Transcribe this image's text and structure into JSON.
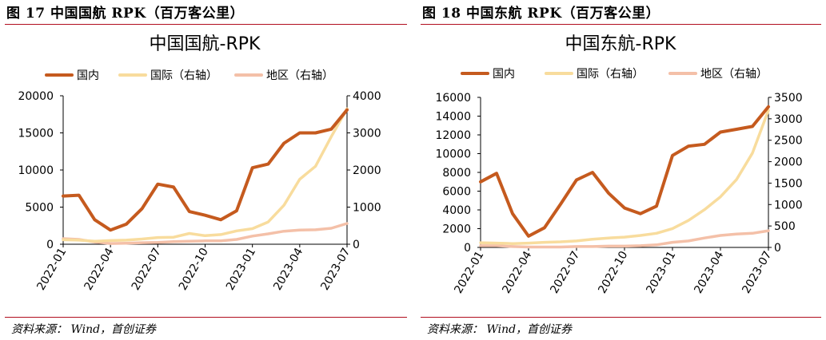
{
  "colors": {
    "accent_rule": "#b10e1e",
    "domestic": "#c55a1e",
    "international": "#f8dc9d",
    "regional": "#f4c0a8"
  },
  "footer_source": "资料来源： Wind，首创证券",
  "chart_data": [
    {
      "figure_label": "图 17 中国国航 RPK（百万客公里）",
      "type": "line",
      "title": "中国国航-RPK",
      "categories": [
        "2022-01",
        "2022-02",
        "2022-03",
        "2022-04",
        "2022-05",
        "2022-06",
        "2022-07",
        "2022-08",
        "2022-09",
        "2022-10",
        "2022-11",
        "2022-12",
        "2023-01",
        "2023-02",
        "2023-03",
        "2023-04",
        "2023-05",
        "2023-06",
        "2023-07"
      ],
      "tick_labels": [
        "2022-01",
        "2022-04",
        "2022-07",
        "2022-10",
        "2023-01",
        "2023-04",
        "2023-07"
      ],
      "ylim_left": [
        0,
        20000
      ],
      "yticks_left": [
        "0",
        "5000",
        "10000",
        "15000",
        "20000"
      ],
      "ylim_right": [
        0,
        4000
      ],
      "yticks_right": [
        "0",
        "1000",
        "2000",
        "3000",
        "4000"
      ],
      "legend_position": "top",
      "grid": false,
      "series": [
        {
          "name": "国内",
          "axis": "left",
          "color": "#c55a1e",
          "width": 4,
          "values": [
            6500,
            6600,
            3300,
            1900,
            2700,
            4800,
            8100,
            7700,
            4400,
            3900,
            3300,
            4500,
            10300,
            10800,
            13600,
            15000,
            15000,
            15500,
            18100
          ]
        },
        {
          "name": "国际（右轴）",
          "axis": "right",
          "color": "#f8dc9d",
          "width": 3.5,
          "values": [
            120,
            110,
            80,
            100,
            110,
            140,
            180,
            190,
            290,
            230,
            260,
            360,
            420,
            600,
            1050,
            1750,
            2100,
            2900,
            3650
          ]
        },
        {
          "name": "地区（右轴）",
          "axis": "right",
          "color": "#f4c0a8",
          "width": 3.5,
          "values": [
            150,
            130,
            60,
            20,
            25,
            40,
            50,
            70,
            80,
            90,
            90,
            130,
            220,
            280,
            350,
            380,
            390,
            430,
            560
          ]
        }
      ]
    },
    {
      "figure_label": "图 18 中国东航 RPK（百万客公里）",
      "type": "line",
      "title": "中国东航-RPK",
      "categories": [
        "2022-01",
        "2022-02",
        "2022-03",
        "2022-04",
        "2022-05",
        "2022-06",
        "2022-07",
        "2022-08",
        "2022-09",
        "2022-10",
        "2022-11",
        "2022-12",
        "2023-01",
        "2023-02",
        "2023-03",
        "2023-04",
        "2023-05",
        "2023-06",
        "2023-07"
      ],
      "tick_labels": [
        "2022-01",
        "2022-04",
        "2022-07",
        "2022-10",
        "2023-01",
        "2023-04",
        "2023-07"
      ],
      "ylim_left": [
        0,
        16000
      ],
      "yticks_left": [
        "0",
        "2000",
        "4000",
        "6000",
        "8000",
        "10000",
        "12000",
        "14000",
        "16000"
      ],
      "ylim_right": [
        0,
        3500
      ],
      "yticks_right": [
        "0",
        "500",
        "1000",
        "1500",
        "2000",
        "2500",
        "3000",
        "3500"
      ],
      "legend_position": "top",
      "grid": false,
      "series": [
        {
          "name": "国内",
          "axis": "left",
          "color": "#c55a1e",
          "width": 4,
          "values": [
            7000,
            7900,
            3600,
            1200,
            2100,
            4600,
            7200,
            8000,
            5800,
            4200,
            3600,
            4400,
            9800,
            10800,
            11000,
            12300,
            12600,
            12900,
            15000
          ]
        },
        {
          "name": "国际（右轴）",
          "axis": "right",
          "color": "#f8dc9d",
          "width": 3.5,
          "values": [
            110,
            100,
            90,
            100,
            120,
            130,
            150,
            190,
            220,
            240,
            280,
            330,
            440,
            630,
            880,
            1180,
            1580,
            2200,
            3200
          ]
        },
        {
          "name": "地区（右轴）",
          "axis": "right",
          "color": "#f4c0a8",
          "width": 3.5,
          "values": [
            40,
            40,
            20,
            10,
            10,
            10,
            20,
            20,
            30,
            30,
            40,
            60,
            120,
            150,
            220,
            280,
            310,
            330,
            390
          ]
        }
      ]
    }
  ]
}
